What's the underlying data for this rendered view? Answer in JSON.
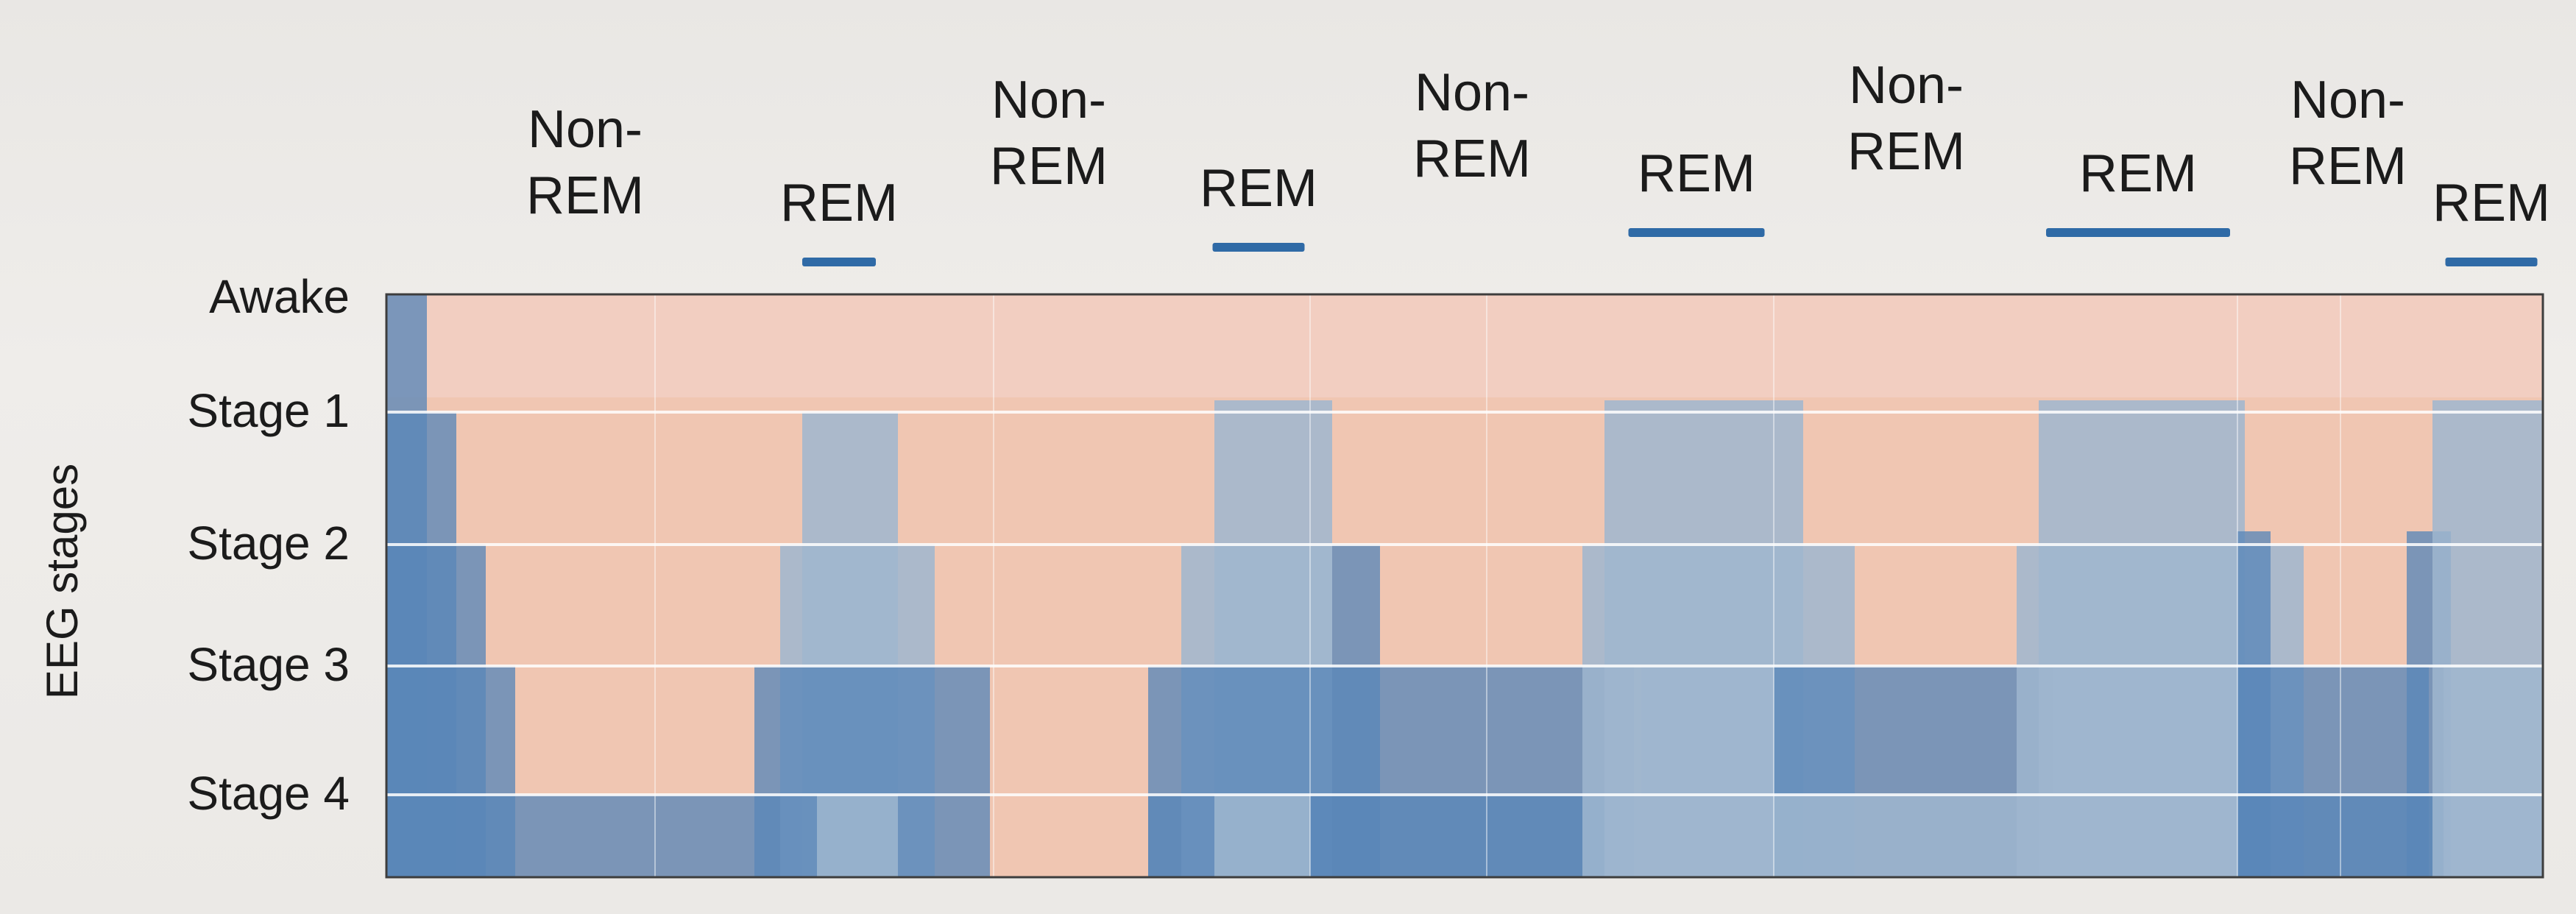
{
  "chart_data": {
    "type": "area",
    "title": "",
    "xlabel": "",
    "ylabel": "EEG stages",
    "y_categories": [
      "Awake",
      "Stage 1",
      "Stage 2",
      "Stage 3",
      "Stage 4"
    ],
    "phase_labels": [
      {
        "text": "Non-\nREM",
        "kind": "non-rem"
      },
      {
        "text": "REM",
        "kind": "rem"
      },
      {
        "text": "Non-\nREM",
        "kind": "non-rem"
      },
      {
        "text": "REM",
        "kind": "rem"
      },
      {
        "text": "Non-\nREM",
        "kind": "non-rem"
      },
      {
        "text": "REM",
        "kind": "rem"
      },
      {
        "text": "Non-\nREM",
        "kind": "non-rem"
      },
      {
        "text": "REM",
        "kind": "rem"
      },
      {
        "text": "Non-\nREM",
        "kind": "non-rem"
      },
      {
        "text": "REM",
        "kind": "rem"
      }
    ],
    "grid": true,
    "legend": "none"
  },
  "colors": {
    "awake_fill": "#f3cfc4",
    "nonrem_fill": "#f0c6b2",
    "sleep_blue": "#5a87b8",
    "rem_blue": "#9fb6cf",
    "rem_bar": "#2f6aa6",
    "grid": "#ffffff"
  }
}
